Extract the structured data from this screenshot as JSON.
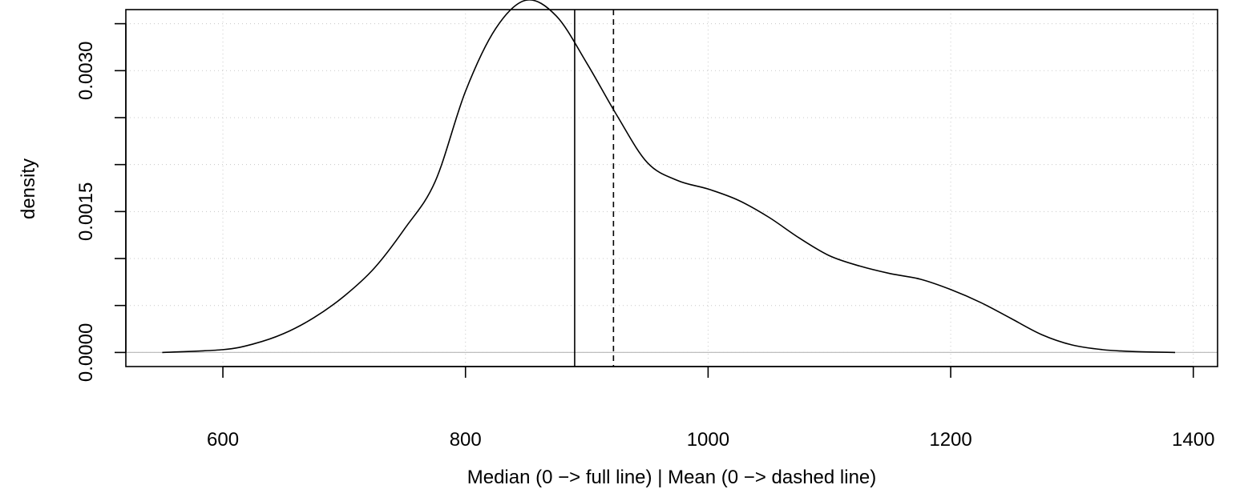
{
  "chart_data": {
    "type": "line",
    "title": "",
    "xlabel": "Median (0 −> full line) | Mean (0 −> dashed line)",
    "ylabel": "density",
    "xlim": [
      520,
      1420
    ],
    "ylim": [
      -0.00015,
      0.00365
    ],
    "x_ticks": [
      600,
      800,
      1000,
      1200,
      1400
    ],
    "x_tick_labels": [
      "600",
      "800",
      "1000",
      "1200",
      "1400"
    ],
    "y_ticks": [
      0.0,
      0.0005,
      0.001,
      0.0015,
      0.002,
      0.0025,
      0.003,
      0.0035
    ],
    "y_tick_labels": [
      "0.0000",
      "",
      "",
      "0.0015",
      "",
      "",
      "0.0030",
      ""
    ],
    "grid": true,
    "baseline": 0,
    "median": 890,
    "mean": 922,
    "series": [
      {
        "x": [
          550,
          600,
          625,
          650,
          675,
          700,
          725,
          750,
          775,
          800,
          825,
          850,
          875,
          900,
          925,
          950,
          975,
          1000,
          1025,
          1050,
          1075,
          1100,
          1125,
          1150,
          1175,
          1200,
          1225,
          1250,
          1275,
          1300,
          1325,
          1350,
          1385
        ],
        "y": [
          0.0,
          3e-05,
          9e-05,
          0.0002,
          0.00037,
          0.0006,
          0.0009,
          0.00132,
          0.00182,
          0.00278,
          0.00345,
          0.00375,
          0.00358,
          0.00308,
          0.00252,
          0.00202,
          0.00183,
          0.00174,
          0.00162,
          0.00144,
          0.00122,
          0.00103,
          0.00092,
          0.00084,
          0.00078,
          0.00067,
          0.00053,
          0.00036,
          0.00019,
          8e-05,
          3e-05,
          1e-05,
          0.0
        ]
      }
    ]
  }
}
